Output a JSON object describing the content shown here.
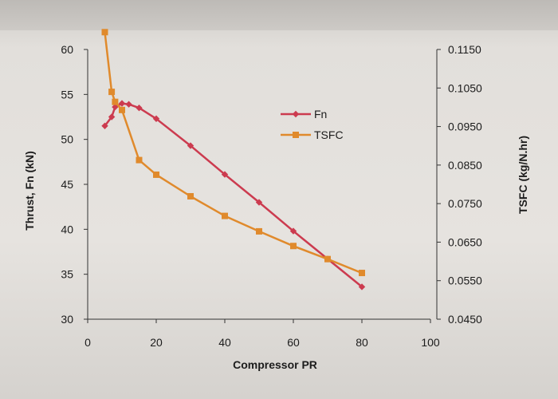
{
  "chart_data": {
    "type": "line",
    "title": "",
    "xlabel": "Compressor PR",
    "ylabel_left": "Thrust, Fn (kN)",
    "ylabel_right": "TSFC (kg/N.hr)",
    "xlim": [
      0,
      100
    ],
    "ylim_left": [
      30,
      60
    ],
    "ylim_right": [
      0.045,
      0.115
    ],
    "x_ticks": [
      "0",
      "20",
      "40",
      "60",
      "80",
      "100"
    ],
    "y_left_ticks": [
      "30",
      "35",
      "40",
      "45",
      "50",
      "55",
      "60"
    ],
    "y_right_ticks": [
      "0.0450",
      "0.0550",
      "0.0650",
      "0.0750",
      "0.0850",
      "0.0950",
      "0.1050",
      "0.1150"
    ],
    "grid": false,
    "legend_position": "upper-right-inside",
    "series": [
      {
        "name": "Fn",
        "axis": "left",
        "color": "#cc3b4f",
        "marker": "diamond",
        "x": [
          5,
          7,
          8,
          10,
          12,
          15,
          20,
          30,
          40,
          50,
          60,
          70,
          80
        ],
        "y": [
          51.5,
          52.5,
          53.6,
          54.0,
          53.9,
          53.5,
          52.3,
          49.3,
          46.1,
          43.0,
          39.8,
          36.7,
          33.6
        ]
      },
      {
        "name": "TSFC",
        "axis": "right",
        "color": "#e08a2c",
        "marker": "square",
        "x": [
          5,
          7,
          8,
          10,
          15,
          20,
          30,
          40,
          50,
          60,
          70,
          80
        ],
        "y": [
          0.1195,
          0.104,
          0.1014,
          0.0993,
          0.0863,
          0.0825,
          0.0769,
          0.0718,
          0.0678,
          0.064,
          0.0606,
          0.057
        ]
      }
    ]
  }
}
